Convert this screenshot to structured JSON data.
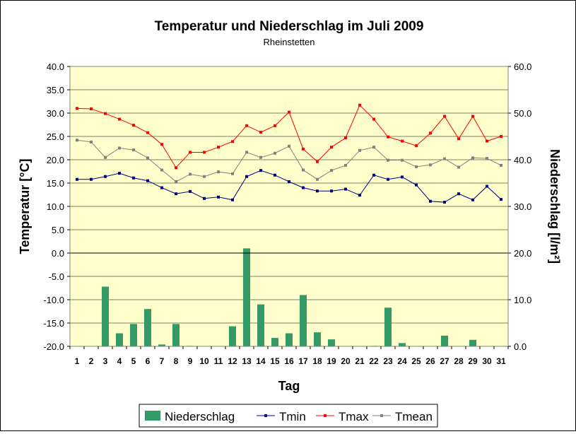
{
  "chart_data": {
    "type": "line",
    "title": "Temperatur und Niederschlag im Juli 2009",
    "subtitle": "Rheinstetten",
    "xlabel": "Tag",
    "ylabel": "Temperatur [°C]",
    "y2label": "Niederschlag [l/m²]",
    "ylim": [
      -20,
      40
    ],
    "y2lim": [
      0,
      60
    ],
    "yticks": [
      "40.0",
      "35.0",
      "30.0",
      "25.0",
      "20.0",
      "15.0",
      "10.0",
      "5.0",
      "0.0",
      "-5.0",
      "-10.0",
      "-15.0",
      "-20.0"
    ],
    "y2ticks": [
      "60.0",
      "50.0",
      "40.0",
      "30.0",
      "20.0",
      "10.0",
      "0.0"
    ],
    "categories": [
      "1",
      "2",
      "3",
      "4",
      "5",
      "6",
      "7",
      "8",
      "9",
      "10",
      "11",
      "12",
      "13",
      "14",
      "15",
      "16",
      "17",
      "18",
      "19",
      "20",
      "21",
      "22",
      "23",
      "24",
      "25",
      "26",
      "27",
      "28",
      "29",
      "30",
      "31"
    ],
    "grid": true,
    "legend_position": "bottom",
    "plot_background": "#ffffcc",
    "series": [
      {
        "name": "Niederschlag",
        "type": "bar",
        "axis": "right",
        "color": "#339966",
        "values": [
          0,
          0,
          12.8,
          2.8,
          4.8,
          8.0,
          0.4,
          4.8,
          0.1,
          0,
          0,
          4.3,
          21.0,
          9.0,
          1.8,
          2.8,
          11.0,
          3.0,
          1.5,
          0,
          0,
          0.1,
          8.3,
          0.7,
          0,
          0,
          2.3,
          0,
          1.4,
          0,
          0
        ]
      },
      {
        "name": "Tmin",
        "type": "line",
        "axis": "left",
        "color": "#000080",
        "values": [
          15.8,
          15.8,
          16.4,
          17.1,
          16.1,
          15.5,
          14.0,
          12.7,
          13.2,
          11.7,
          12.0,
          11.4,
          16.4,
          17.7,
          16.7,
          15.3,
          14.0,
          13.3,
          13.3,
          13.7,
          12.4,
          16.7,
          15.8,
          16.3,
          14.6,
          11.1,
          10.9,
          12.7,
          11.4,
          14.3,
          11.5
        ]
      },
      {
        "name": "Tmax",
        "type": "line",
        "axis": "left",
        "color": "#ff0000",
        "values": [
          31.0,
          30.9,
          29.9,
          28.7,
          27.4,
          25.8,
          23.3,
          18.3,
          21.6,
          21.6,
          22.7,
          23.9,
          27.3,
          25.9,
          27.3,
          30.2,
          22.3,
          19.6,
          22.7,
          24.7,
          31.7,
          28.7,
          24.9,
          24.0,
          23.0,
          25.7,
          29.3,
          24.5,
          29.3,
          24.0,
          25.0
        ]
      },
      {
        "name": "Tmean",
        "type": "line",
        "axis": "left",
        "color": "#808080",
        "values": [
          24.2,
          23.8,
          20.5,
          22.5,
          22.1,
          20.4,
          17.8,
          15.3,
          16.9,
          16.4,
          17.4,
          17.0,
          21.6,
          20.5,
          21.4,
          22.9,
          17.8,
          15.8,
          17.7,
          18.8,
          22.0,
          22.7,
          19.9,
          19.9,
          18.5,
          18.9,
          20.2,
          18.4,
          20.4,
          20.3,
          18.8
        ]
      }
    ]
  }
}
